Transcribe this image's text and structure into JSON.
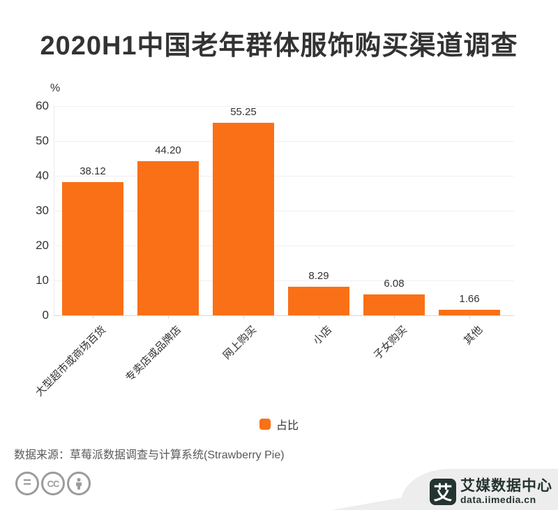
{
  "title": "2020H1中国老年群体服饰购买渠道调查",
  "chart_data": {
    "type": "bar",
    "title": "2020H1中国老年群体服饰购买渠道调查",
    "categories": [
      "大型超市或商场百货",
      "专卖店或品牌店",
      "网上购买",
      "小店",
      "子女购买",
      "其他"
    ],
    "values": [
      38.12,
      44.2,
      55.25,
      8.29,
      6.08,
      1.66
    ],
    "value_labels": [
      "38.12",
      "44.20",
      "55.25",
      "8.29",
      "6.08",
      "1.66"
    ],
    "series_name": "占比",
    "y_unit": "%",
    "xlabel": "",
    "ylabel": "%",
    "ylim": [
      0,
      60
    ],
    "yticks": [
      0,
      10,
      20,
      30,
      40,
      50,
      60
    ],
    "grid": true,
    "legend_position": "bottom",
    "bar_color": "#FA7017",
    "x_label_rotation": 45
  },
  "legend": {
    "label": "占比",
    "swatch_color": "#FA7017"
  },
  "source": "数据来源：草莓派数据调查与计算系统(Strawberry Pie)",
  "footer": {
    "license_icons": [
      "equals-icon",
      "creative-commons-icon",
      "attribution-person-icon"
    ],
    "cc_equals": "=",
    "cc_cc": "CC",
    "brand": {
      "icon_char": "艾",
      "name": "艾媒数据中心",
      "url": "data.iimedia.cn"
    }
  },
  "colors": {
    "bar": "#FA7017",
    "title_text": "#333333",
    "axis_text": "#333333",
    "grid_line": "#F0F0F0",
    "axis_line": "#D9D9D9",
    "source_text": "#595959",
    "brand_dark": "#243431",
    "brand_band": "#EDEDED",
    "cc_gray": "#9B9B9B"
  }
}
